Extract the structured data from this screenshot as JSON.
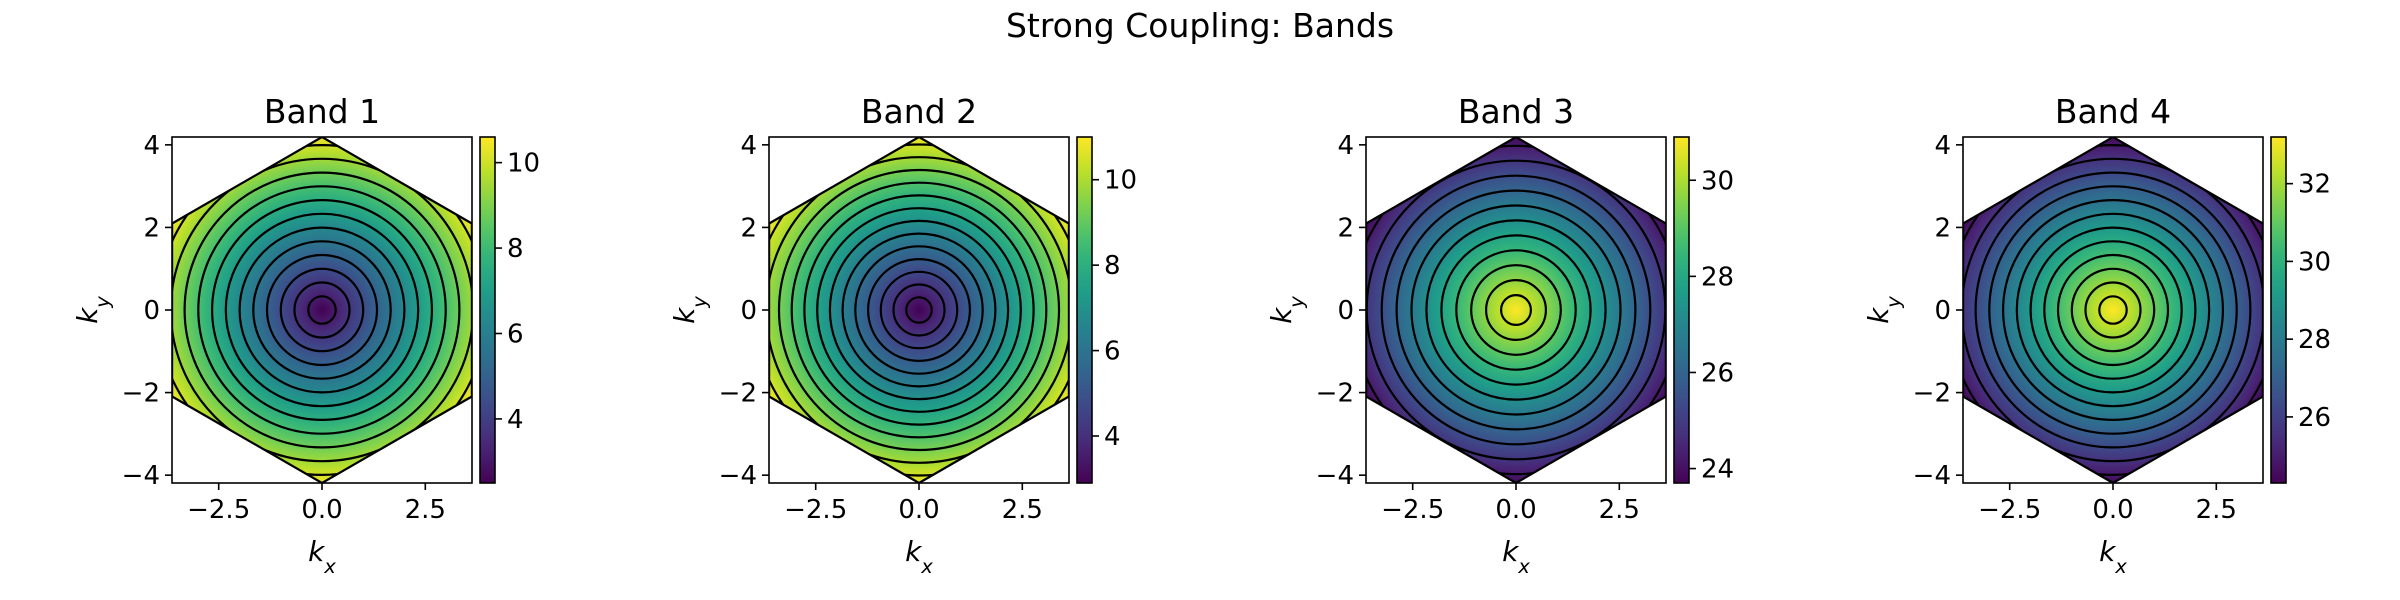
{
  "figure": {
    "title": "Strong Coupling: Bands",
    "colormap": "viridis",
    "background": "#ffffff"
  },
  "chart_data": [
    {
      "type": "heatmap",
      "title": "Band 1",
      "xlabel": "k_x",
      "ylabel": "k_y",
      "xlim": [
        -3.63,
        3.63
      ],
      "ylim": [
        -4.19,
        4.19
      ],
      "x_ticks": [
        -2.5,
        0.0,
        2.5
      ],
      "x_tick_labels": [
        "−2.5",
        "0.0",
        "2.5"
      ],
      "y_ticks": [
        -4,
        -2,
        0,
        2,
        4
      ],
      "y_tick_labels": [
        "−4",
        "−2",
        "0",
        "2",
        "4"
      ],
      "domain": "hexagonal Brillouin zone (pointy top, vertex at k_y = 4.19)",
      "center_value": 2.5,
      "edge_value": 10.6,
      "outer_color": "#fde725",
      "contour_levels": 12,
      "colorbar": {
        "min": 2.5,
        "max": 10.6,
        "ticks": [
          4,
          6,
          8,
          10
        ],
        "tick_labels": [
          "4",
          "6",
          "8",
          "10"
        ]
      }
    },
    {
      "type": "heatmap",
      "title": "Band 2",
      "xlabel": "k_x",
      "ylabel": "k_y",
      "xlim": [
        -3.63,
        3.63
      ],
      "ylim": [
        -4.19,
        4.19
      ],
      "x_ticks": [
        -2.5,
        0.0,
        2.5
      ],
      "x_tick_labels": [
        "−2.5",
        "0.0",
        "2.5"
      ],
      "y_ticks": [
        -4,
        -2,
        0,
        2,
        4
      ],
      "y_tick_labels": [
        "−4",
        "−2",
        "0",
        "2",
        "4"
      ],
      "domain": "hexagonal Brillouin zone (pointy top, vertex at k_y = 4.19)",
      "center_value": 2.9,
      "edge_value": 11.0,
      "outer_color": "#fde725",
      "contour_levels": 13,
      "colorbar": {
        "min": 2.9,
        "max": 11.0,
        "ticks": [
          4,
          6,
          8,
          10
        ],
        "tick_labels": [
          "4",
          "6",
          "8",
          "10"
        ]
      }
    },
    {
      "type": "heatmap",
      "title": "Band 3",
      "xlabel": "k_x",
      "ylabel": "k_y",
      "xlim": [
        -3.63,
        3.63
      ],
      "ylim": [
        -4.19,
        4.19
      ],
      "x_ticks": [
        -2.5,
        0.0,
        2.5
      ],
      "x_tick_labels": [
        "−2.5",
        "0.0",
        "2.5"
      ],
      "y_ticks": [
        -4,
        -2,
        0,
        2,
        4
      ],
      "y_tick_labels": [
        "−4",
        "−2",
        "0",
        "2",
        "4"
      ],
      "domain": "hexagonal Brillouin zone (pointy top, vertex at k_y = 4.19)",
      "center_value": 30.9,
      "edge_value": 23.7,
      "outer_color": "#440154",
      "contour_levels": 11,
      "colorbar": {
        "min": 23.7,
        "max": 30.9,
        "ticks": [
          24,
          26,
          28,
          30
        ],
        "tick_labels": [
          "24",
          "26",
          "28",
          "30"
        ]
      }
    },
    {
      "type": "heatmap",
      "title": "Band 4",
      "xlabel": "k_x",
      "ylabel": "k_y",
      "xlim": [
        -3.63,
        3.63
      ],
      "ylim": [
        -4.19,
        4.19
      ],
      "x_ticks": [
        -2.5,
        0.0,
        2.5
      ],
      "x_tick_labels": [
        "−2.5",
        "0.0",
        "2.5"
      ],
      "y_ticks": [
        -4,
        -2,
        0,
        2,
        4
      ],
      "y_tick_labels": [
        "−4",
        "−2",
        "0",
        "2",
        "4"
      ],
      "domain": "hexagonal Brillouin zone (pointy top, vertex at k_y = 4.19)",
      "center_value": 33.2,
      "edge_value": 24.3,
      "outer_color": "#440154",
      "contour_levels": 12,
      "colorbar": {
        "min": 24.3,
        "max": 33.2,
        "ticks": [
          26,
          28,
          30,
          32
        ],
        "tick_labels": [
          "26",
          "28",
          "30",
          "32"
        ]
      }
    }
  ]
}
